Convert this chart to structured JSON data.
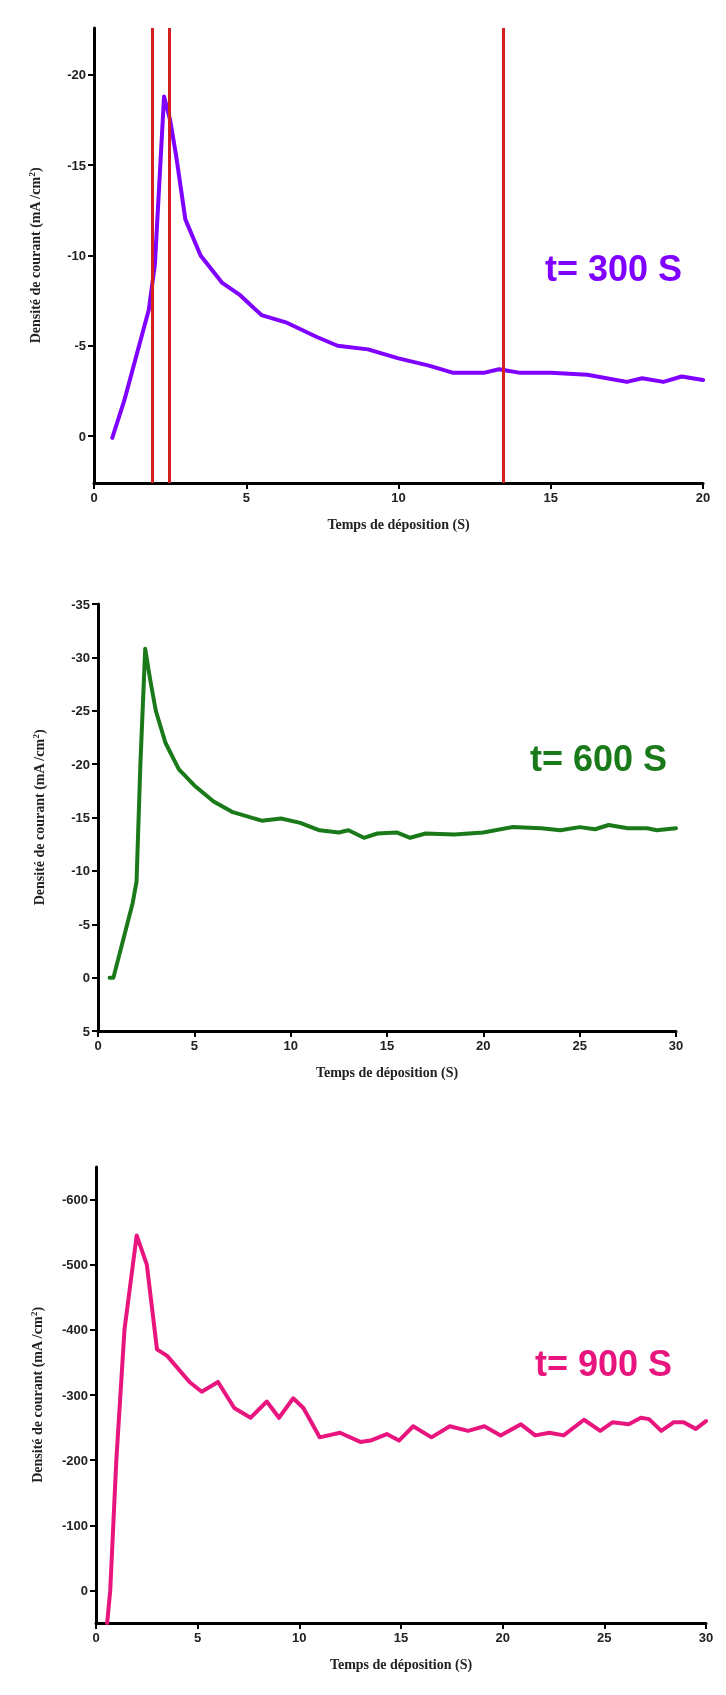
{
  "chart_data": [
    {
      "type": "line",
      "xlabel": "Temps de déposition (S)",
      "ylabel": "Densité de courant (mA /cm$^{2}$)",
      "annotations": [
        "t= 300 S"
      ],
      "xlim": [
        0,
        20
      ],
      "xticks": [
        0,
        5,
        10,
        15,
        20
      ],
      "ylim": [
        2.6,
        -22.6
      ],
      "yticks": [
        0,
        -5,
        -10,
        -15,
        -20
      ],
      "grid": false,
      "marker": "none",
      "line_style": "solid",
      "series": [
        {
          "color": "#8000ff",
          "x": [
            0.6,
            1.0,
            1.4,
            1.8,
            2.0,
            2.3,
            2.5,
            2.7,
            3.0,
            3.5,
            4.2,
            4.8,
            5.5,
            6.3,
            7.3,
            8,
            9,
            10,
            11,
            11.8,
            12.8,
            13.3,
            14,
            15,
            16.2,
            17.5,
            18,
            18.7,
            19.3,
            20
          ],
          "values": [
            0.1,
            -2,
            -4.5,
            -7,
            -9.5,
            -18.8,
            -17.5,
            -15.5,
            -12,
            -10,
            -8.5,
            -7.8,
            -6.7,
            -6.3,
            -5.5,
            -5,
            -4.8,
            -4.3,
            -3.9,
            -3.5,
            -3.5,
            -3.7,
            -3.5,
            -3.5,
            -3.4,
            -3,
            -3.2,
            -3,
            -3.3,
            -3.1
          ]
        }
      ],
      "ref_lines": [
        {
          "axis": "x",
          "value": 1.92,
          "color": "#d42020"
        },
        {
          "axis": "x",
          "value": 2.48,
          "color": "#d42020"
        },
        {
          "axis": "x",
          "value": 13.45,
          "color": "#d42020"
        }
      ]
    },
    {
      "type": "line",
      "xlabel": "Temps de déposition (S)",
      "ylabel": "Densité de courant (mA /cm$^{2}$)",
      "annotations": [
        "t= 600 S"
      ],
      "xlim": [
        0,
        30
      ],
      "xticks": [
        0,
        5,
        10,
        15,
        20,
        25,
        30
      ],
      "ylim": [
        5,
        -35
      ],
      "yticks": [
        5,
        0,
        -5,
        -10,
        -15,
        -20,
        -25,
        -30,
        -35
      ],
      "grid": false,
      "marker": "none",
      "line_style": "solid",
      "series": [
        {
          "color": "#1a7a1a",
          "x": [
            0.6,
            0.8,
            1.8,
            2.0,
            2.2,
            2.45,
            2.7,
            3.0,
            3.5,
            4.2,
            5,
            6,
            7,
            8.5,
            9.5,
            10.5,
            11.5,
            12.5,
            13,
            13.8,
            14.5,
            15.5,
            16.2,
            17,
            18.5,
            20,
            21.5,
            23,
            24,
            25,
            25.8,
            26.5,
            27.5,
            28.5,
            29,
            30
          ],
          "values": [
            0,
            0,
            -7,
            -9,
            -20,
            -30.8,
            -28,
            -25,
            -22,
            -19.5,
            -18,
            -16.5,
            -15.5,
            -14.7,
            -14.9,
            -14.5,
            -13.8,
            -13.6,
            -13.8,
            -13.1,
            -13.5,
            -13.6,
            -13.1,
            -13.5,
            -13.4,
            -13.6,
            -14.1,
            -14,
            -13.8,
            -14.1,
            -13.9,
            -14.3,
            -14,
            -14,
            -13.8,
            -14
          ]
        }
      ]
    },
    {
      "type": "line",
      "xlabel": "Temps de déposition (S)",
      "ylabel": "Densité de courant (mA /cm$^{2}$)",
      "annotations": [
        "t= 900 S"
      ],
      "xlim": [
        0,
        30
      ],
      "xticks": [
        0,
        5,
        10,
        15,
        20,
        25,
        30
      ],
      "ylim": [
        50,
        -650
      ],
      "yticks": [
        0,
        -100,
        -200,
        -300,
        -400,
        -500,
        -600
      ],
      "grid": false,
      "marker": "none",
      "line_style": "solid",
      "series": [
        {
          "color": "#e8157f",
          "x": [
            0.55,
            0.7,
            1.0,
            1.4,
            2.0,
            2.5,
            3.0,
            3.5,
            4.6,
            5.2,
            6.0,
            6.8,
            7.6,
            8.4,
            9.0,
            9.7,
            10.2,
            11.0,
            12.0,
            13.0,
            13.5,
            14.3,
            14.9,
            15.6,
            16.5,
            17.4,
            18.3,
            19.1,
            19.9,
            20.9,
            21.6,
            22.3,
            23.0,
            24.0,
            24.8,
            25.4,
            26.2,
            26.8,
            27.2,
            27.8,
            28.4,
            28.9,
            29.5,
            30
          ],
          "values": [
            50,
            0,
            -200,
            -400,
            -545,
            -500,
            -370,
            -360,
            -320,
            -305,
            -320,
            -280,
            -265,
            -290,
            -265,
            -295,
            -280,
            -235,
            -242,
            -228,
            -230,
            -240,
            -230,
            -252,
            -235,
            -252,
            -245,
            -252,
            -238,
            -255,
            -238,
            -242,
            -238,
            -262,
            -245,
            -258,
            -255,
            -265,
            -263,
            -245,
            -258,
            -258,
            -248,
            -260
          ]
        }
      ]
    }
  ]
}
